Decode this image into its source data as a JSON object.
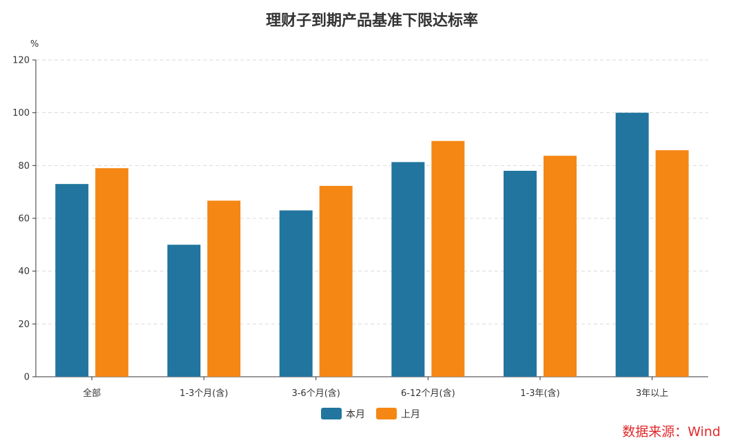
{
  "chart_data": {
    "type": "bar",
    "title": "理财子到期产品基准下限达标率",
    "ylabel": "%",
    "xlabel": "",
    "ylim": [
      0,
      120
    ],
    "yticks": [
      0,
      20,
      40,
      60,
      80,
      100,
      120
    ],
    "grid": true,
    "legend_position": "bottom",
    "categories": [
      "全部",
      "1-3个月(含)",
      "3-6个月(含)",
      "6-12个月(含)",
      "1-3年(含)",
      "3年以上"
    ],
    "series": [
      {
        "name": "本月",
        "color": "#21759f",
        "values": [
          73,
          50,
          63,
          81.3,
          78,
          100
        ]
      },
      {
        "name": "上月",
        "color": "#f58715",
        "values": [
          79,
          66.7,
          72.3,
          89.3,
          83.7,
          85.8
        ]
      }
    ]
  },
  "source": {
    "text": "数据来源：Wind",
    "color": "#e0282a"
  }
}
